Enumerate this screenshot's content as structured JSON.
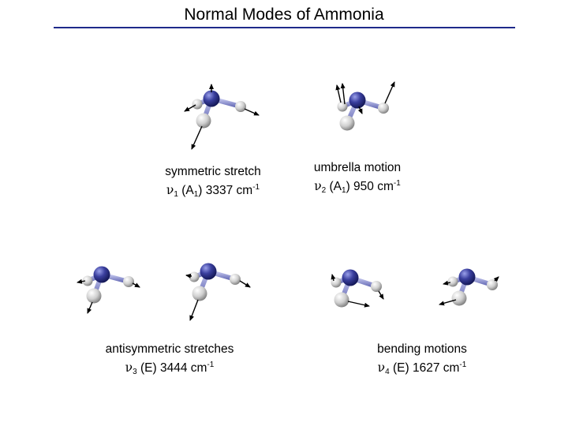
{
  "title": "Normal Modes of Ammonia",
  "colors": {
    "rule": "#1f2a8a",
    "nitrogen": "#3a3f9e",
    "hydrogen": "#d8d8d8",
    "bond": "#8a8fcf"
  },
  "modes": [
    {
      "name": "symmetric stretch",
      "symbol": "ν",
      "index": "1",
      "sym_main": "A",
      "sym_sub": "1",
      "freq": "3337",
      "unit": "cm",
      "exp": "-1"
    },
    {
      "name": "umbrella motion",
      "symbol": "ν",
      "index": "2",
      "sym_main": "A",
      "sym_sub": "1",
      "freq": "950",
      "unit": "cm",
      "exp": "-1"
    },
    {
      "name": "antisymmetric stretches",
      "symbol": "ν",
      "index": "3",
      "sym_main": "E",
      "sym_sub": "",
      "freq": "3444",
      "unit": "cm",
      "exp": "-1"
    },
    {
      "name": "bending motions",
      "symbol": "ν",
      "index": "4",
      "sym_main": "E",
      "sym_sub": "",
      "freq": "1627",
      "unit": "cm",
      "exp": "-1"
    }
  ]
}
